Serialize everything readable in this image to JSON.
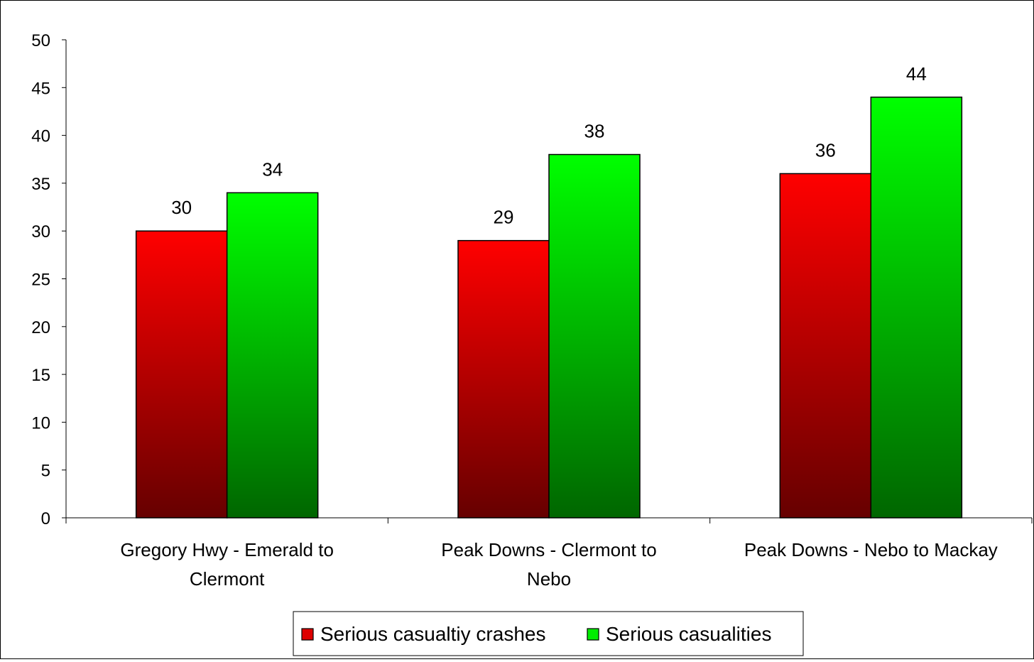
{
  "chart_data": {
    "type": "bar",
    "title": "",
    "xlabel": "",
    "ylabel": "",
    "ylim": [
      0,
      50
    ],
    "y_ticks": [
      "0",
      "5",
      "10",
      "15",
      "20",
      "25",
      "30",
      "35",
      "40",
      "45",
      "50"
    ],
    "grid": false,
    "legend_position": "bottom",
    "categories": [
      [
        "Gregory Hwy - Emerald to",
        "Clermont"
      ],
      [
        "Peak Downs - Clermont to",
        "Nebo"
      ],
      [
        "Peak Downs - Nebo to Mackay"
      ]
    ],
    "series": [
      {
        "name": "Serious casualtiy crashes",
        "values": [
          30,
          29,
          36
        ],
        "color_top": "#ff0000",
        "color_bottom": "#660000",
        "legend_color": "#dd0000"
      },
      {
        "name": "Serious casualities",
        "values": [
          34,
          38,
          44
        ],
        "color_top": "#00ff00",
        "color_bottom": "#006600",
        "legend_color": "#00ee00"
      }
    ]
  }
}
